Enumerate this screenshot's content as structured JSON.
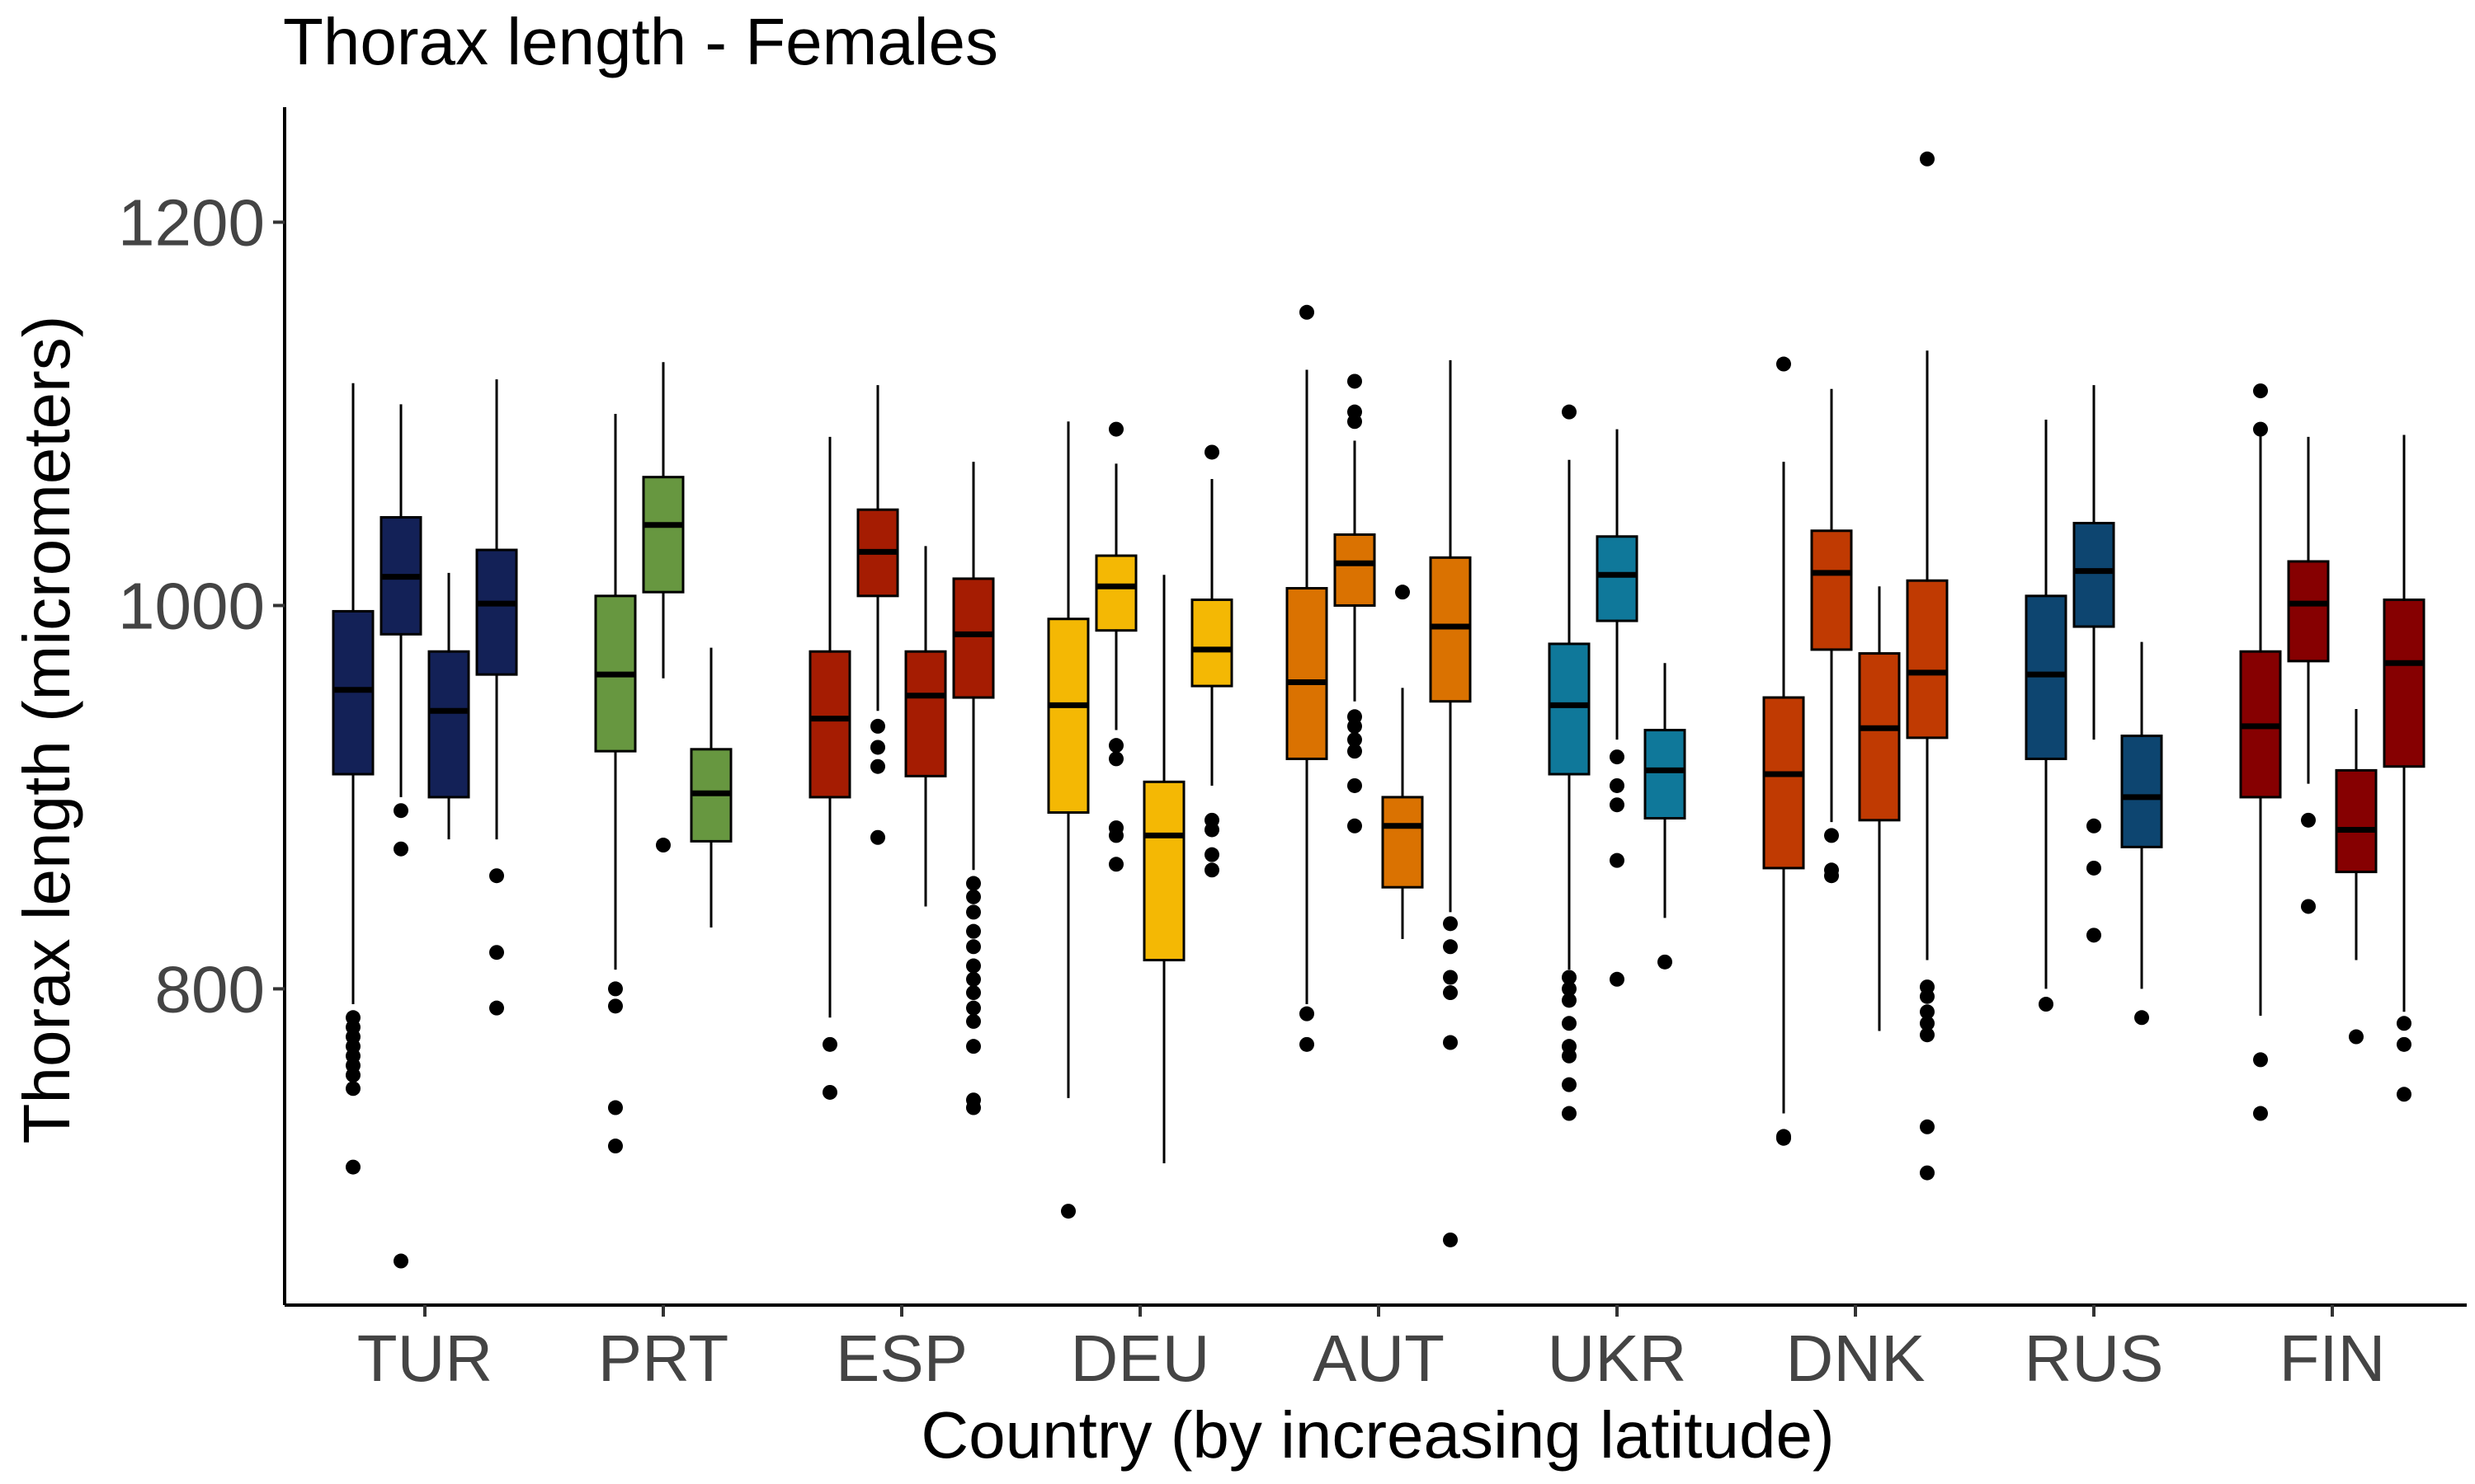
{
  "chart_data": {
    "type": "boxplot",
    "title": "Thorax length - Females",
    "xlabel": "Country (by increasing latitude)",
    "ylabel": "Thorax length (micrometers)",
    "ylim": [
      635,
      1260
    ],
    "yticks": [
      800,
      1000,
      1200
    ],
    "grid": false,
    "legend": "none",
    "categories": [
      "TUR",
      "PRT",
      "ESP",
      "DEU",
      "AUT",
      "UKR",
      "DNK",
      "RUS",
      "FIN"
    ],
    "groups": [
      {
        "category": "TUR",
        "color": "#132157",
        "boxes": [
          {
            "slot": 1,
            "min": 792,
            "q1": 912,
            "median": 956,
            "q3": 997,
            "max": 1116,
            "outliers": [
              785,
              780,
              775,
              770,
              765,
              760,
              755,
              748,
              707
            ]
          },
          {
            "slot": 2,
            "min": 900,
            "q1": 985,
            "median": 1015,
            "q3": 1046,
            "max": 1105,
            "outliers": [
              893,
              873,
              658
            ]
          },
          {
            "slot": 3,
            "min": 878,
            "q1": 900,
            "median": 945,
            "q3": 976,
            "max": 1017,
            "outliers": []
          },
          {
            "slot": 4,
            "min": 878,
            "q1": 964,
            "median": 1001,
            "q3": 1029,
            "max": 1118,
            "outliers": [
              859,
              819,
              790
            ]
          }
        ]
      },
      {
        "category": "PRT",
        "color": "#679740",
        "boxes": [
          {
            "slot": 1,
            "min": 810,
            "q1": 924,
            "median": 964,
            "q3": 1005,
            "max": 1100,
            "outliers": [
              800,
              791,
              738,
              718
            ]
          },
          {
            "slot": 2,
            "min": 962,
            "q1": 1007,
            "median": 1042,
            "q3": 1067,
            "max": 1127,
            "outliers": [
              875
            ]
          },
          {
            "slot": 3,
            "min": 832,
            "q1": 877,
            "median": 902,
            "q3": 925,
            "max": 978,
            "outliers": []
          }
        ]
      },
      {
        "category": "ESP",
        "color": "#A51C02",
        "boxes": [
          {
            "slot": 1,
            "min": 785,
            "q1": 900,
            "median": 941,
            "q3": 976,
            "max": 1088,
            "outliers": [
              771,
              746
            ]
          },
          {
            "slot": 2,
            "min": 945,
            "q1": 1005,
            "median": 1028,
            "q3": 1050,
            "max": 1115,
            "outliers": [
              937,
              926,
              916,
              879
            ]
          },
          {
            "slot": 3,
            "min": 843,
            "q1": 911,
            "median": 953,
            "q3": 976,
            "max": 1031,
            "outliers": []
          },
          {
            "slot": 4,
            "min": 862,
            "q1": 952,
            "median": 985,
            "q3": 1014,
            "max": 1075,
            "outliers": [
              855,
              848,
              840,
              830,
              822,
              812,
              805,
              798,
              790,
              783,
              770,
              742,
              738
            ]
          }
        ]
      },
      {
        "category": "DEU",
        "color": "#F4B804",
        "boxes": [
          {
            "slot": 1,
            "min": 743,
            "q1": 892,
            "median": 948,
            "q3": 993,
            "max": 1096,
            "outliers": [
              684
            ]
          },
          {
            "slot": 2,
            "min": 935,
            "q1": 987,
            "median": 1010,
            "q3": 1026,
            "max": 1074,
            "outliers": [
              1092,
              927,
              920,
              884,
              880,
              865
            ]
          },
          {
            "slot": 3,
            "min": 709,
            "q1": 815,
            "median": 880,
            "q3": 908,
            "max": 1016,
            "outliers": []
          },
          {
            "slot": 4,
            "min": 906,
            "q1": 958,
            "median": 977,
            "q3": 1003,
            "max": 1066,
            "outliers": [
              1080,
              888,
              883,
              870,
              862
            ]
          }
        ]
      },
      {
        "category": "AUT",
        "color": "#DA7201",
        "boxes": [
          {
            "slot": 1,
            "min": 792,
            "q1": 920,
            "median": 960,
            "q3": 1009,
            "max": 1123,
            "outliers": [
              1153,
              787,
              771
            ]
          },
          {
            "slot": 2,
            "min": 950,
            "q1": 1000,
            "median": 1022,
            "q3": 1037,
            "max": 1086,
            "outliers": [
              1117,
              1101,
              1096,
              942,
              937,
              930,
              924,
              906,
              885
            ]
          },
          {
            "slot": 3,
            "min": 826,
            "q1": 853,
            "median": 885,
            "q3": 900,
            "max": 957,
            "outliers": [
              1007
            ]
          },
          {
            "slot": 4,
            "min": 840,
            "q1": 950,
            "median": 989,
            "q3": 1025,
            "max": 1128,
            "outliers": [
              834,
              822,
              806,
              798,
              772,
              669
            ]
          }
        ]
      },
      {
        "category": "UKR",
        "color": "#0F789A",
        "boxes": [
          {
            "slot": 1,
            "min": 810,
            "q1": 912,
            "median": 948,
            "q3": 980,
            "max": 1076,
            "outliers": [
              1101,
              806,
              800,
              794,
              782,
              770,
              765,
              750,
              735
            ]
          },
          {
            "slot": 2,
            "min": 930,
            "q1": 992,
            "median": 1016,
            "q3": 1036,
            "max": 1092,
            "outliers": [
              921,
              906,
              896,
              867,
              805
            ]
          },
          {
            "slot": 3,
            "min": 837,
            "q1": 889,
            "median": 914,
            "q3": 935,
            "max": 970,
            "outliers": [
              814
            ]
          }
        ]
      },
      {
        "category": "DNK",
        "color": "#C03A02",
        "boxes": [
          {
            "slot": 1,
            "min": 735,
            "q1": 863,
            "median": 912,
            "q3": 952,
            "max": 1075,
            "outliers": [
              1126,
              723,
              722
            ]
          },
          {
            "slot": 2,
            "min": 887,
            "q1": 977,
            "median": 1017,
            "q3": 1039,
            "max": 1113,
            "outliers": [
              880,
              862,
              859
            ]
          },
          {
            "slot": 3,
            "min": 778,
            "q1": 888,
            "median": 936,
            "q3": 975,
            "max": 1010,
            "outliers": []
          },
          {
            "slot": 4,
            "min": 815,
            "q1": 931,
            "median": 965,
            "q3": 1013,
            "max": 1133,
            "outliers": [
              1233,
              801,
              796,
              788,
              782,
              776,
              728,
              704
            ]
          }
        ]
      },
      {
        "category": "RUS",
        "color": "#0D4570",
        "boxes": [
          {
            "slot": 1,
            "min": 800,
            "q1": 920,
            "median": 964,
            "q3": 1005,
            "max": 1097,
            "outliers": [
              792
            ]
          },
          {
            "slot": 2,
            "min": 930,
            "q1": 989,
            "median": 1018,
            "q3": 1043,
            "max": 1115,
            "outliers": [
              885,
              863,
              828
            ]
          },
          {
            "slot": 3,
            "min": 800,
            "q1": 874,
            "median": 900,
            "q3": 932,
            "max": 981,
            "outliers": [
              785
            ]
          }
        ]
      },
      {
        "category": "FIN",
        "color": "#860001",
        "boxes": [
          {
            "slot": 1,
            "min": 786,
            "q1": 900,
            "median": 937,
            "q3": 976,
            "max": 1092,
            "outliers": [
              1112,
              1092,
              763,
              735
            ]
          },
          {
            "slot": 2,
            "min": 907,
            "q1": 971,
            "median": 1001,
            "q3": 1023,
            "max": 1088,
            "outliers": [
              888,
              843
            ]
          },
          {
            "slot": 3,
            "min": 815,
            "q1": 861,
            "median": 883,
            "q3": 914,
            "max": 946,
            "outliers": [
              775
            ]
          },
          {
            "slot": 4,
            "min": 788,
            "q1": 916,
            "median": 970,
            "q3": 1003,
            "max": 1089,
            "outliers": [
              782,
              771,
              745
            ]
          }
        ]
      }
    ]
  }
}
